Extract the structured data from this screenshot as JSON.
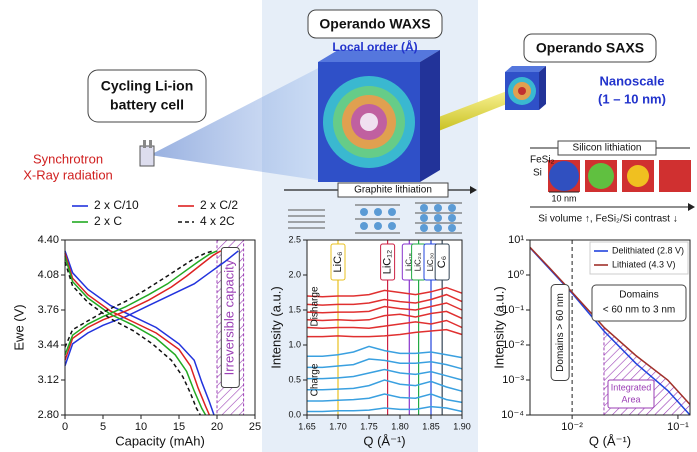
{
  "labels": {
    "battery_cell": [
      "Cycling Li-ion",
      "battery cell"
    ],
    "synchrotron": [
      "Synchrotron",
      "X-Ray radiation"
    ],
    "waxs_title": "Operando WAXS",
    "waxs_subtitle": "Local order (Å)",
    "saxs_title": "Operando SAXS",
    "saxs_subtitle": [
      "Nanoscale",
      "(1 – 10 nm)"
    ],
    "graphite": "Graphite lithiation",
    "silicon": "Silicon lithiation",
    "fesi2": "FeSi₂",
    "si": "Si",
    "scale": "10 nm",
    "si_trend": "Si volume ↑, FeSi₂/Si contrast ↓"
  },
  "chart_data": [
    {
      "type": "line",
      "x_label": "Capacity (mAh)",
      "y_label": "Ewe (V)",
      "legend": "above",
      "xlim": [
        0,
        25
      ],
      "xticks": [
        0,
        5,
        10,
        15,
        20,
        25
      ],
      "ylim": [
        2.8,
        4.4
      ],
      "yticks": [
        {
          "value": 2.8,
          "label": "2.80"
        },
        3.12,
        3.44,
        3.76,
        4.08,
        {
          "value": 4.4,
          "label": "4.40"
        }
      ],
      "annotation": "Irreversible capacity",
      "annotation_range": [
        20,
        23.5
      ],
      "annotation_color": "#9b3fb5",
      "series": [
        {
          "name": "2 x C/10",
          "color": "#2233dd",
          "dashed": false,
          "x": [
            0,
            1,
            3,
            6,
            9,
            12,
            15,
            17,
            18,
            19,
            19.6,
            null,
            0,
            1,
            3,
            5,
            8,
            11,
            14,
            17,
            19,
            21,
            22.8
          ],
          "values": [
            4.3,
            4.1,
            3.95,
            3.8,
            3.7,
            3.6,
            3.45,
            3.3,
            3.1,
            2.92,
            2.8,
            null,
            3.25,
            3.45,
            3.55,
            3.62,
            3.7,
            3.8,
            3.9,
            4.0,
            4.1,
            4.2,
            4.3
          ]
        },
        {
          "name": "2 x C/2",
          "color": "#dd2222",
          "dashed": false,
          "x": [
            0,
            1,
            3,
            6,
            9,
            12,
            15,
            16.5,
            17.5,
            18.5,
            19,
            null,
            0,
            1,
            3,
            5,
            8,
            11,
            14,
            16,
            18,
            19.5,
            20.5
          ],
          "values": [
            4.28,
            4.05,
            3.9,
            3.75,
            3.65,
            3.55,
            3.4,
            3.25,
            3.05,
            2.88,
            2.8,
            null,
            3.3,
            3.5,
            3.6,
            3.67,
            3.75,
            3.85,
            3.97,
            4.07,
            4.18,
            4.26,
            4.3
          ]
        },
        {
          "name": "2 x C",
          "color": "#22aa22",
          "dashed": false,
          "x": [
            0,
            1,
            3,
            6,
            9,
            12,
            14.5,
            16,
            17,
            18,
            18.5,
            null,
            0,
            1,
            3,
            5,
            8,
            11,
            13.5,
            15.5,
            17.5,
            19,
            20
          ],
          "values": [
            4.25,
            4.02,
            3.87,
            3.72,
            3.62,
            3.5,
            3.35,
            3.2,
            3.02,
            2.86,
            2.8,
            null,
            3.35,
            3.53,
            3.63,
            3.7,
            3.79,
            3.9,
            4.0,
            4.1,
            4.2,
            4.27,
            4.3
          ]
        },
        {
          "name": "4 x 2C",
          "color": "#111111",
          "dashed": true,
          "x": [
            0,
            1,
            3,
            6,
            9,
            11.5,
            14,
            15.5,
            16.5,
            17.3,
            17.8,
            null,
            0,
            1,
            3,
            5,
            8,
            10.5,
            13,
            15,
            17,
            18.5,
            19.5
          ],
          "values": [
            4.2,
            3.98,
            3.83,
            3.68,
            3.57,
            3.45,
            3.3,
            3.15,
            3.0,
            2.86,
            2.8,
            null,
            3.42,
            3.58,
            3.66,
            3.74,
            3.84,
            3.94,
            4.05,
            4.14,
            4.23,
            4.28,
            4.3
          ]
        }
      ]
    },
    {
      "type": "line",
      "x_label": "Q (Å⁻¹)",
      "y_label": "Intensity (a.u.)",
      "xlim": [
        1.65,
        1.9
      ],
      "xticks": [
        1.65,
        {
          "value": 1.7,
          "label": "1.70"
        },
        1.75,
        {
          "value": 1.8,
          "label": "1.80"
        },
        1.85,
        {
          "value": 1.9,
          "label": "1.90"
        }
      ],
      "ylim": [
        0,
        2.5
      ],
      "yticks": [
        {
          "value": 0,
          "label": "0.0"
        },
        0.5,
        {
          "value": 1,
          "label": "1.0"
        },
        1.5,
        {
          "value": 2,
          "label": "2.0"
        },
        2.5
      ],
      "annotations": [
        "Disharge",
        "Charge"
      ],
      "markers": [
        {
          "label": "LiC₆",
          "value": 1.7,
          "color": "#e8c020"
        },
        {
          "label": "LiC₁₂",
          "value": 1.78,
          "color": "#cc2244"
        },
        {
          "label": "LiC₁₈",
          "value": 1.815,
          "color": "#8833cc"
        },
        {
          "label": "LiC₂₄",
          "value": 1.83,
          "color": "#22aa44"
        },
        {
          "label": "LiC₃₀",
          "value": 1.85,
          "color": "#2244dd"
        },
        {
          "label": "C₆",
          "value": 1.868,
          "color": "#334455"
        }
      ],
      "x": [
        1.65,
        1.675,
        1.7,
        1.725,
        1.75,
        1.775,
        1.8,
        1.825,
        1.85,
        1.875,
        1.9
      ],
      "series": [
        {
          "color": "#e03030",
          "values": [
            1.12,
            1.12,
            1.13,
            1.12,
            1.12,
            1.13,
            1.15,
            1.18,
            1.2,
            1.22,
            1.15
          ]
        },
        {
          "color": "#e03030",
          "values": [
            1.25,
            1.24,
            1.25,
            1.25,
            1.24,
            1.27,
            1.3,
            1.33,
            1.3,
            1.35,
            1.25
          ]
        },
        {
          "color": "#e03030",
          "values": [
            1.36,
            1.35,
            1.36,
            1.35,
            1.36,
            1.42,
            1.44,
            1.4,
            1.45,
            1.48,
            1.38
          ]
        },
        {
          "color": "#e03030",
          "values": [
            1.47,
            1.46,
            1.47,
            1.47,
            1.48,
            1.55,
            1.52,
            1.5,
            1.55,
            1.6,
            1.5
          ]
        },
        {
          "color": "#e03030",
          "values": [
            1.58,
            1.57,
            1.58,
            1.58,
            1.6,
            1.65,
            1.62,
            1.6,
            1.65,
            1.72,
            1.62
          ]
        },
        {
          "color": "#e03030",
          "values": [
            1.7,
            1.69,
            1.7,
            1.7,
            1.72,
            1.78,
            1.75,
            1.72,
            1.76,
            1.82,
            1.74
          ]
        },
        {
          "color": "#3aa0e0",
          "values": [
            0.05,
            0.05,
            0.06,
            0.06,
            0.07,
            0.1,
            0.08,
            0.08,
            0.12,
            0.1,
            0.05
          ]
        },
        {
          "color": "#3aa0e0",
          "values": [
            0.2,
            0.2,
            0.21,
            0.22,
            0.24,
            0.3,
            0.25,
            0.24,
            0.3,
            0.22,
            0.18
          ]
        },
        {
          "color": "#3aa0e0",
          "values": [
            0.36,
            0.36,
            0.37,
            0.38,
            0.42,
            0.5,
            0.44,
            0.42,
            0.48,
            0.4,
            0.34
          ]
        },
        {
          "color": "#3aa0e0",
          "values": [
            0.52,
            0.52,
            0.53,
            0.55,
            0.6,
            0.65,
            0.6,
            0.58,
            0.62,
            0.56,
            0.5
          ]
        },
        {
          "color": "#3aa0e0",
          "values": [
            0.68,
            0.68,
            0.7,
            0.72,
            0.8,
            0.78,
            0.74,
            0.74,
            0.76,
            0.72,
            0.66
          ]
        },
        {
          "color": "#3aa0e0",
          "values": [
            0.84,
            0.84,
            0.86,
            0.9,
            0.98,
            0.92,
            0.88,
            0.88,
            0.9,
            0.86,
            0.82
          ]
        }
      ]
    },
    {
      "type": "line",
      "x_label": "Q (Å⁻¹)",
      "y_label": "Intensity (a.u.)",
      "log_x": true,
      "log_y": true,
      "legend": "upper right",
      "xlim": [
        0.004,
        0.13
      ],
      "xticks": [
        {
          "value": 0.01,
          "label": "10⁻²"
        },
        {
          "value": 0.1,
          "label": "10⁻¹"
        }
      ],
      "ylim": [
        0.0001,
        10
      ],
      "yticks": [
        {
          "value": 0.0001,
          "label": "10⁻⁴"
        },
        {
          "value": 0.001,
          "label": "10⁻³"
        },
        {
          "value": 0.01,
          "label": "10⁻²"
        },
        {
          "value": 0.1,
          "label": "10⁻¹"
        },
        {
          "value": 1,
          "label": "10⁰"
        },
        {
          "value": 10,
          "label": "10¹"
        }
      ],
      "vline": 0.01,
      "integrated_range": [
        0.02,
        0.13
      ],
      "annotations": [
        "Domains > 60 nm",
        "Domains",
        "< 60 nm to 3 nm",
        "Integrated",
        "Area"
      ],
      "series": [
        {
          "name": "Delithiated (2.8 V)",
          "color": "#2244dd",
          "x": [
            0.004,
            0.006,
            0.01,
            0.02,
            0.04,
            0.08,
            0.13
          ],
          "values": [
            6,
            1.6,
            0.3,
            0.025,
            0.003,
            0.0005,
            0.0001
          ]
        },
        {
          "name": "Lithiated (4.3 V)",
          "color": "#a0302a",
          "x": [
            0.004,
            0.006,
            0.01,
            0.02,
            0.04,
            0.08,
            0.13
          ],
          "values": [
            6.2,
            1.7,
            0.32,
            0.032,
            0.005,
            0.001,
            0.0002
          ]
        }
      ]
    }
  ]
}
